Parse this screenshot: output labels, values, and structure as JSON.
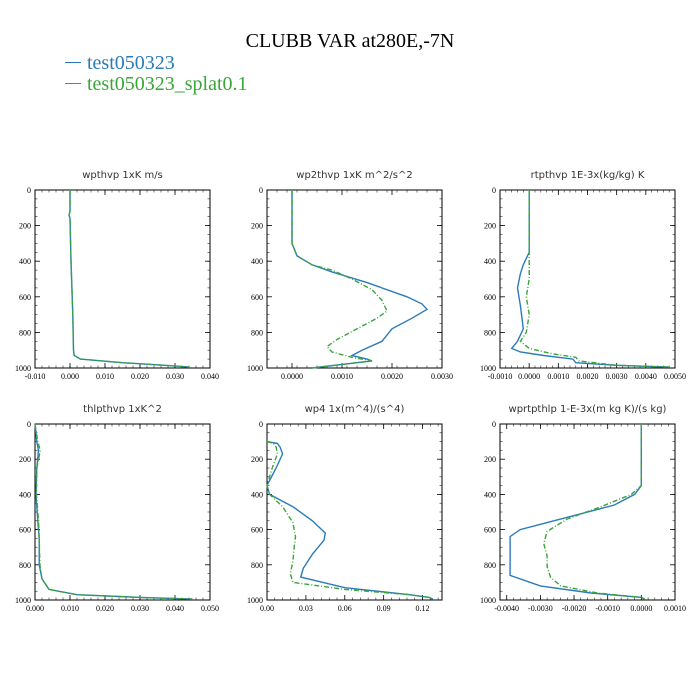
{
  "title": "CLUBB VAR at280E,-7N",
  "legend": [
    {
      "label": "test050323",
      "color": "#2b7bb9"
    },
    {
      "label": "test050323_splat0.1",
      "color": "#3aa538"
    }
  ],
  "chart_data": [
    {
      "type": "line",
      "title": "wpthvp   1xK  m/s",
      "xlim": [
        -0.01,
        0.04
      ],
      "ylim": [
        0,
        1000
      ],
      "y_reversed": true,
      "xticks": [
        -0.01,
        0.0,
        0.01,
        0.02,
        0.03,
        0.04
      ],
      "xtick_labels": [
        "-0.010",
        "0.000",
        "0.010",
        "0.020",
        "0.030",
        "0.040"
      ],
      "yticks": [
        0,
        200,
        400,
        600,
        800,
        1000
      ],
      "ytick_labels": [
        "0",
        "200",
        "400",
        "600",
        "800",
        "1000"
      ],
      "series": [
        {
          "name": "test050323",
          "x": [
            0.0,
            0.0,
            -0.0003,
            0.0,
            0.0003,
            0.0008,
            0.001,
            0.0012,
            0.003,
            0.015,
            0.027,
            0.034
          ],
          "y": [
            0,
            120,
            140,
            160,
            400,
            700,
            900,
            930,
            950,
            970,
            985,
            995
          ]
        },
        {
          "name": "test050323_splat0.1",
          "x": [
            0.0,
            0.0,
            -0.0003,
            0.0,
            0.0003,
            0.0008,
            0.001,
            0.0012,
            0.003,
            0.015,
            0.027,
            0.034
          ],
          "y": [
            0,
            120,
            140,
            160,
            400,
            700,
            900,
            930,
            950,
            970,
            985,
            995
          ]
        }
      ]
    },
    {
      "type": "line",
      "title": "wp2thvp   1xK  m^2/s^2",
      "xlim": [
        -0.0005,
        0.003
      ],
      "ylim": [
        0,
        1000
      ],
      "y_reversed": true,
      "xticks": [
        0.0,
        0.001,
        0.002,
        0.003
      ],
      "xtick_labels": [
        "0.0000",
        "0.0010",
        "0.0020",
        "0.0030"
      ],
      "yticks": [
        0,
        200,
        400,
        600,
        800,
        1000
      ],
      "ytick_labels": [
        "0",
        "200",
        "400",
        "600",
        "800",
        "1000"
      ],
      "series": [
        {
          "name": "test050323",
          "x": [
            0.0,
            0.0,
            0.0,
            0.0001,
            0.0004,
            0.0008,
            0.0015,
            0.0023,
            0.0026,
            0.0027,
            0.0024,
            0.002,
            0.0018,
            0.0014,
            0.0012,
            0.0015,
            0.0016,
            0.001,
            0.0004
          ],
          "y": [
            0,
            200,
            300,
            370,
            420,
            460,
            520,
            600,
            640,
            670,
            720,
            780,
            850,
            900,
            930,
            950,
            960,
            980,
            1000
          ]
        },
        {
          "name": "test050323_splat0.1",
          "x": [
            0.0,
            0.0,
            0.0,
            0.0001,
            0.0004,
            0.0008,
            0.0012,
            0.0016,
            0.0018,
            0.0019,
            0.0017,
            0.0013,
            0.0009,
            0.0007,
            0.0008,
            0.0012,
            0.0016,
            0.001,
            0.0004
          ],
          "y": [
            0,
            200,
            300,
            370,
            420,
            450,
            500,
            560,
            620,
            680,
            720,
            780,
            840,
            880,
            910,
            940,
            960,
            980,
            1000
          ]
        }
      ]
    },
    {
      "type": "line",
      "title": "rtpthvp   1E-3x(kg/kg)  K",
      "xlim": [
        -0.001,
        0.005
      ],
      "ylim": [
        0,
        1000
      ],
      "y_reversed": true,
      "xticks": [
        -0.001,
        0.0,
        0.001,
        0.002,
        0.003,
        0.004,
        0.005
      ],
      "xtick_labels": [
        "-0.0010",
        "0.0000",
        "0.0010",
        "0.0020",
        "0.0030",
        "0.0040",
        "0.0050"
      ],
      "yticks": [
        0,
        200,
        400,
        600,
        800,
        1000
      ],
      "ytick_labels": [
        "0",
        "200",
        "400",
        "600",
        "800",
        "1000"
      ],
      "series": [
        {
          "name": "test050323",
          "x": [
            0.0,
            0.0,
            -0.0002,
            -0.0003,
            -0.0004,
            -0.0003,
            -0.0002,
            -0.0004,
            -0.0006,
            -0.0003,
            0.0005,
            0.0015,
            0.0016,
            0.003,
            0.0048
          ],
          "y": [
            0,
            350,
            420,
            470,
            550,
            650,
            780,
            850,
            890,
            910,
            930,
            950,
            970,
            985,
            995
          ]
        },
        {
          "name": "test050323_splat0.1",
          "x": [
            0.0,
            0.0,
            0.0,
            0.0,
            -0.0001,
            0.0,
            -0.0001,
            -0.0003,
            0.0,
            0.0008,
            0.0016,
            0.0017,
            0.003,
            0.0048
          ],
          "y": [
            0,
            350,
            450,
            500,
            600,
            700,
            800,
            850,
            890,
            920,
            940,
            960,
            985,
            995
          ]
        }
      ]
    },
    {
      "type": "line",
      "title": "thlpthvp   1xK^2",
      "xlim": [
        0.0,
        0.05
      ],
      "ylim": [
        0,
        1000
      ],
      "y_reversed": true,
      "xticks": [
        0.0,
        0.01,
        0.02,
        0.03,
        0.04,
        0.05
      ],
      "xtick_labels": [
        "0.000",
        "0.010",
        "0.020",
        "0.030",
        "0.040",
        "0.050"
      ],
      "yticks": [
        0,
        200,
        400,
        600,
        800,
        1000
      ],
      "ytick_labels": [
        "0",
        "200",
        "400",
        "600",
        "800",
        "1000"
      ],
      "series": [
        {
          "name": "test050323",
          "x": [
            0.0,
            0.0005,
            0.001,
            0.0005,
            0.0003,
            0.0008,
            0.0012,
            0.0012,
            0.002,
            0.004,
            0.012,
            0.03,
            0.045
          ],
          "y": [
            0,
            100,
            150,
            250,
            400,
            550,
            650,
            800,
            880,
            940,
            970,
            985,
            995
          ]
        },
        {
          "name": "test050323_splat0.1",
          "x": [
            0.0,
            0.0008,
            0.0015,
            0.0005,
            0.0004,
            0.001,
            0.0012,
            0.0014,
            0.002,
            0.004,
            0.012,
            0.03,
            0.045
          ],
          "y": [
            0,
            100,
            150,
            250,
            400,
            550,
            650,
            800,
            880,
            940,
            970,
            985,
            995
          ]
        }
      ]
    },
    {
      "type": "line",
      "title": "wp4   1x(m^4)/(s^4)",
      "xlim": [
        0.0,
        0.135
      ],
      "ylim": [
        0,
        1000
      ],
      "y_reversed": true,
      "xticks": [
        0.0,
        0.03,
        0.06,
        0.09,
        0.12
      ],
      "xtick_labels": [
        "0.00",
        "0.03",
        "0.06",
        "0.09",
        "0.12"
      ],
      "yticks": [
        0,
        200,
        400,
        600,
        800,
        1000
      ],
      "ytick_labels": [
        "0",
        "200",
        "400",
        "600",
        "800",
        "1000"
      ],
      "series": [
        {
          "name": "test050323",
          "x": [
            0.0,
            0.008,
            0.01,
            0.012,
            0.007,
            0.0,
            0.002,
            0.02,
            0.035,
            0.045,
            0.044,
            0.035,
            0.028,
            0.026,
            0.06,
            0.11,
            0.125,
            0.128
          ],
          "y": [
            100,
            110,
            130,
            170,
            250,
            350,
            400,
            470,
            550,
            620,
            660,
            740,
            820,
            870,
            930,
            970,
            985,
            995
          ]
        },
        {
          "name": "test050323_splat0.1",
          "x": [
            0.0,
            0.005,
            0.007,
            0.008,
            0.004,
            0.0,
            0.002,
            0.012,
            0.02,
            0.022,
            0.021,
            0.02,
            0.018,
            0.02,
            0.06,
            0.11,
            0.125,
            0.128
          ],
          "y": [
            100,
            110,
            130,
            170,
            250,
            350,
            400,
            470,
            560,
            640,
            700,
            780,
            850,
            900,
            940,
            970,
            985,
            995
          ]
        }
      ]
    },
    {
      "type": "line",
      "title": "wprtpthlp   1-E-3x(m kg K)/(s kg)",
      "xlim": [
        -0.0042,
        0.001
      ],
      "ylim": [
        0,
        1000
      ],
      "y_reversed": true,
      "xticks": [
        -0.004,
        -0.003,
        -0.002,
        -0.001,
        0.0,
        0.001
      ],
      "xtick_labels": [
        "-0.0040",
        "-0.0030",
        "-0.0020",
        "-0.0010",
        "0.0000",
        "0.0010"
      ],
      "yticks": [
        0,
        200,
        400,
        600,
        800,
        1000
      ],
      "ytick_labels": [
        "0",
        "200",
        "400",
        "600",
        "800",
        "1000"
      ],
      "series": [
        {
          "name": "test050323",
          "x": [
            0.0,
            0.0,
            0.0,
            -0.0002,
            -0.0008,
            -0.0018,
            -0.0028,
            -0.0036,
            -0.0039,
            -0.0039,
            -0.0039,
            -0.0039,
            -0.003,
            -0.0015,
            0.0,
            0.0001
          ],
          "y": [
            0,
            200,
            350,
            400,
            460,
            510,
            560,
            600,
            640,
            700,
            800,
            860,
            920,
            960,
            985,
            995
          ]
        },
        {
          "name": "test050323_splat0.1",
          "x": [
            0.0,
            0.0,
            0.0,
            -0.0003,
            -0.0012,
            -0.0022,
            -0.0028,
            -0.0029,
            -0.0028,
            -0.0028,
            -0.0027,
            -0.0024,
            -0.0013,
            0.0,
            0.0001
          ],
          "y": [
            0,
            200,
            350,
            400,
            470,
            540,
            610,
            680,
            750,
            810,
            870,
            920,
            960,
            985,
            995
          ]
        }
      ]
    }
  ]
}
